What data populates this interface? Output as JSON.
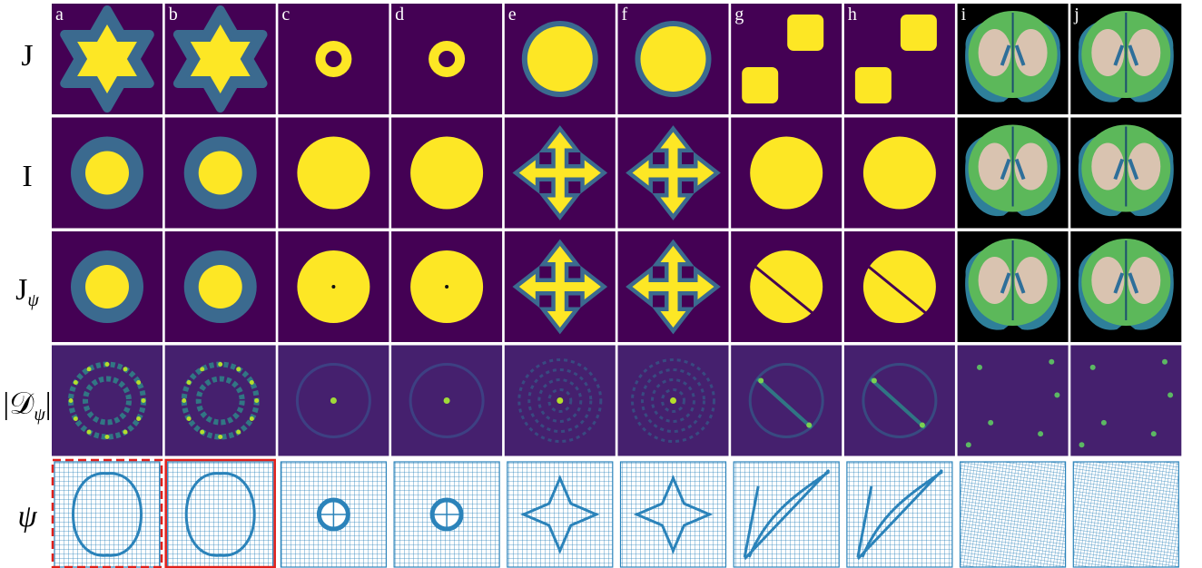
{
  "columns": [
    "a",
    "b",
    "c",
    "d",
    "e",
    "f",
    "g",
    "h",
    "i",
    "j"
  ],
  "rows": [
    {
      "label": "J"
    },
    {
      "label": "I"
    },
    {
      "label": "J",
      "subscript": "ψ"
    },
    {
      "label": "|𝒟",
      "subscript": "ψ",
      "suffix": "|"
    },
    {
      "label": "ψ"
    }
  ]
}
